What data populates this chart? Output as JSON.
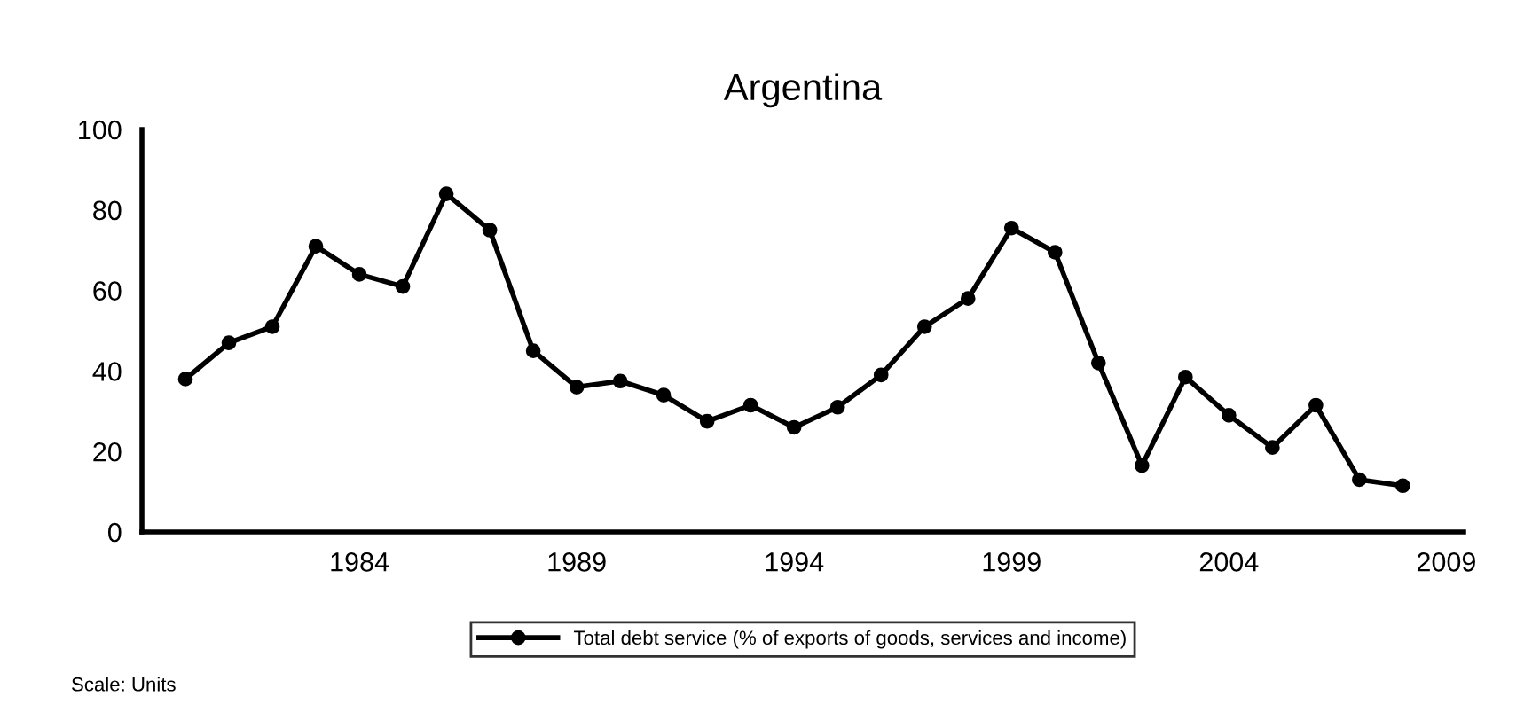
{
  "chart_data": {
    "type": "line",
    "title": "Argentina",
    "x": [
      1980,
      1981,
      1982,
      1983,
      1984,
      1985,
      1986,
      1987,
      1988,
      1989,
      1990,
      1991,
      1992,
      1993,
      1994,
      1995,
      1996,
      1997,
      1998,
      1999,
      2000,
      2001,
      2002,
      2003,
      2004,
      2005,
      2006,
      2007,
      2008
    ],
    "series": [
      {
        "name": "Total debt service (% of exports of goods, services and income)",
        "color": "#000000",
        "values": [
          38,
          47,
          51,
          71,
          64,
          61,
          84,
          75,
          45,
          36,
          37.5,
          34,
          27.5,
          31.5,
          26,
          31,
          39,
          51,
          58,
          75.5,
          69.5,
          42,
          16.5,
          38.5,
          29,
          21,
          31.5,
          13,
          11.5
        ]
      }
    ],
    "xlim": [
      1979,
      2009.4
    ],
    "xticks": [
      1984,
      1989,
      1994,
      1999,
      2004,
      2009
    ],
    "ylim": [
      0,
      100
    ],
    "yticks": [
      0,
      20,
      40,
      60,
      80,
      100
    ],
    "grid": false,
    "legend": "bottom",
    "marker": "circle",
    "line_style": "solid",
    "annotations": [
      "Scale: Units"
    ]
  }
}
